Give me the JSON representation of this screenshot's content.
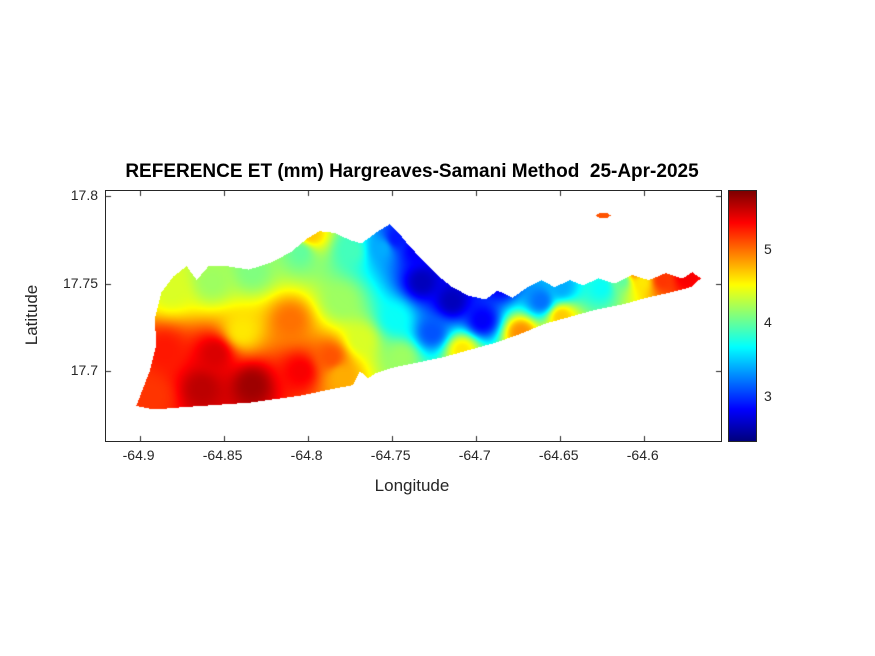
{
  "chart_data": {
    "type": "heatmap",
    "title": "REFERENCE ET (mm) Hargreaves-Samani Method  25-Apr-2025",
    "xlabel": "Longitude",
    "ylabel": "Latitude",
    "xlim": [
      -64.92,
      -64.554
    ],
    "ylim": [
      17.66,
      17.803
    ],
    "grid": false,
    "xticks": [
      -64.9,
      -64.85,
      -64.8,
      -64.75,
      -64.7,
      -64.65,
      -64.6
    ],
    "xtick_labels": [
      "-64.9",
      "-64.85",
      "-64.8",
      "-64.75",
      "-64.7",
      "-64.65",
      "-64.6"
    ],
    "yticks": [
      17.8,
      17.75,
      17.7
    ],
    "ytick_labels": [
      "17.8",
      "17.75",
      "17.7"
    ],
    "colorbar": {
      "colormap": "jet",
      "position": "right",
      "vmin": 2.4,
      "vmax": 5.8,
      "ticks": [
        3,
        4,
        5
      ],
      "tick_labels": [
        "3",
        "4",
        "5"
      ]
    },
    "island_outline": [
      [
        -64.902,
        17.68
      ],
      [
        -64.894,
        17.7
      ],
      [
        -64.89,
        17.715
      ],
      [
        -64.891,
        17.73
      ],
      [
        -64.887,
        17.745
      ],
      [
        -64.88,
        17.754
      ],
      [
        -64.872,
        17.76
      ],
      [
        -64.866,
        17.752
      ],
      [
        -64.859,
        17.76
      ],
      [
        -64.848,
        17.76
      ],
      [
        -64.835,
        17.758
      ],
      [
        -64.822,
        17.762
      ],
      [
        -64.81,
        17.768
      ],
      [
        -64.8,
        17.776
      ],
      [
        -64.793,
        17.78
      ],
      [
        -64.784,
        17.779
      ],
      [
        -64.775,
        17.775
      ],
      [
        -64.768,
        17.773
      ],
      [
        -64.758,
        17.78
      ],
      [
        -64.751,
        17.784
      ],
      [
        -64.745,
        17.778
      ],
      [
        -64.739,
        17.771
      ],
      [
        -64.731,
        17.763
      ],
      [
        -64.723,
        17.755
      ],
      [
        -64.714,
        17.748
      ],
      [
        -64.704,
        17.743
      ],
      [
        -64.694,
        17.741
      ],
      [
        -64.687,
        17.746
      ],
      [
        -64.678,
        17.742
      ],
      [
        -64.669,
        17.748
      ],
      [
        -64.661,
        17.752
      ],
      [
        -64.653,
        17.748
      ],
      [
        -64.644,
        17.752
      ],
      [
        -64.636,
        17.749
      ],
      [
        -64.627,
        17.753
      ],
      [
        -64.617,
        17.75
      ],
      [
        -64.607,
        17.755
      ],
      [
        -64.597,
        17.752
      ],
      [
        -64.587,
        17.756
      ],
      [
        -64.577,
        17.753
      ],
      [
        -64.571,
        17.7565
      ],
      [
        -64.566,
        17.753
      ],
      [
        -64.572,
        17.748
      ],
      [
        -64.584,
        17.745
      ],
      [
        -64.598,
        17.742
      ],
      [
        -64.613,
        17.738
      ],
      [
        -64.629,
        17.735
      ],
      [
        -64.644,
        17.731
      ],
      [
        -64.659,
        17.727
      ],
      [
        -64.674,
        17.721
      ],
      [
        -64.689,
        17.716
      ],
      [
        -64.704,
        17.712
      ],
      [
        -64.719,
        17.708
      ],
      [
        -64.734,
        17.705
      ],
      [
        -64.749,
        17.702
      ],
      [
        -64.759,
        17.699
      ],
      [
        -64.764,
        17.696
      ],
      [
        -64.769,
        17.7
      ],
      [
        -64.773,
        17.692
      ],
      [
        -64.789,
        17.689
      ],
      [
        -64.804,
        17.686
      ],
      [
        -64.819,
        17.684
      ],
      [
        -64.834,
        17.682
      ],
      [
        -64.849,
        17.681
      ],
      [
        -64.864,
        17.68
      ],
      [
        -64.879,
        17.679
      ],
      [
        -64.891,
        17.678
      ]
    ],
    "islet_outline": [
      [
        -64.6285,
        17.789
      ],
      [
        -64.6265,
        17.7903
      ],
      [
        -64.624,
        17.7907
      ],
      [
        -64.6215,
        17.7903
      ],
      [
        -64.6195,
        17.789
      ],
      [
        -64.6215,
        17.7878
      ],
      [
        -64.624,
        17.7874
      ],
      [
        -64.6265,
        17.7878
      ]
    ],
    "value_points_columns": [
      "lon",
      "lat",
      "et_mm"
    ],
    "value_points": [
      [
        -64.892,
        17.686,
        5.2
      ],
      [
        -64.885,
        17.712,
        5.3
      ],
      [
        -64.863,
        17.69,
        5.6
      ],
      [
        -64.833,
        17.692,
        5.7
      ],
      [
        -64.855,
        17.71,
        5.5
      ],
      [
        -64.804,
        17.7,
        5.4
      ],
      [
        -64.78,
        17.697,
        4.8
      ],
      [
        -64.881,
        17.746,
        4.4
      ],
      [
        -64.857,
        17.751,
        4.2
      ],
      [
        -64.833,
        17.757,
        4.1
      ],
      [
        -64.804,
        17.768,
        4.0
      ],
      [
        -64.798,
        17.778,
        4.7
      ],
      [
        -64.774,
        17.769,
        3.9
      ],
      [
        -64.839,
        17.723,
        4.6
      ],
      [
        -64.81,
        17.729,
        5.0
      ],
      [
        -64.78,
        17.74,
        4.2
      ],
      [
        -64.786,
        17.708,
        5.1
      ],
      [
        -64.768,
        17.718,
        4.4
      ],
      [
        -64.756,
        17.77,
        3.4
      ],
      [
        -64.747,
        17.776,
        2.9
      ],
      [
        -64.735,
        17.769,
        2.8
      ],
      [
        -64.732,
        17.751,
        2.6
      ],
      [
        -64.714,
        17.74,
        2.6
      ],
      [
        -64.696,
        17.729,
        2.8
      ],
      [
        -64.726,
        17.722,
        3.1
      ],
      [
        -64.748,
        17.73,
        3.7
      ],
      [
        -64.744,
        17.708,
        4.2
      ],
      [
        -64.708,
        17.712,
        4.6
      ],
      [
        -64.673,
        17.722,
        4.9
      ],
      [
        -64.649,
        17.731,
        4.7
      ],
      [
        -64.685,
        17.75,
        2.8
      ],
      [
        -64.661,
        17.74,
        3.2
      ],
      [
        -64.649,
        17.748,
        3.4
      ],
      [
        -64.625,
        17.748,
        3.7
      ],
      [
        -64.613,
        17.752,
        4.0
      ],
      [
        -64.605,
        17.757,
        4.9
      ],
      [
        -64.601,
        17.751,
        4.6
      ],
      [
        -64.589,
        17.752,
        5.2
      ],
      [
        -64.575,
        17.754,
        5.4
      ],
      [
        -64.624,
        17.789,
        5.1
      ]
    ]
  }
}
